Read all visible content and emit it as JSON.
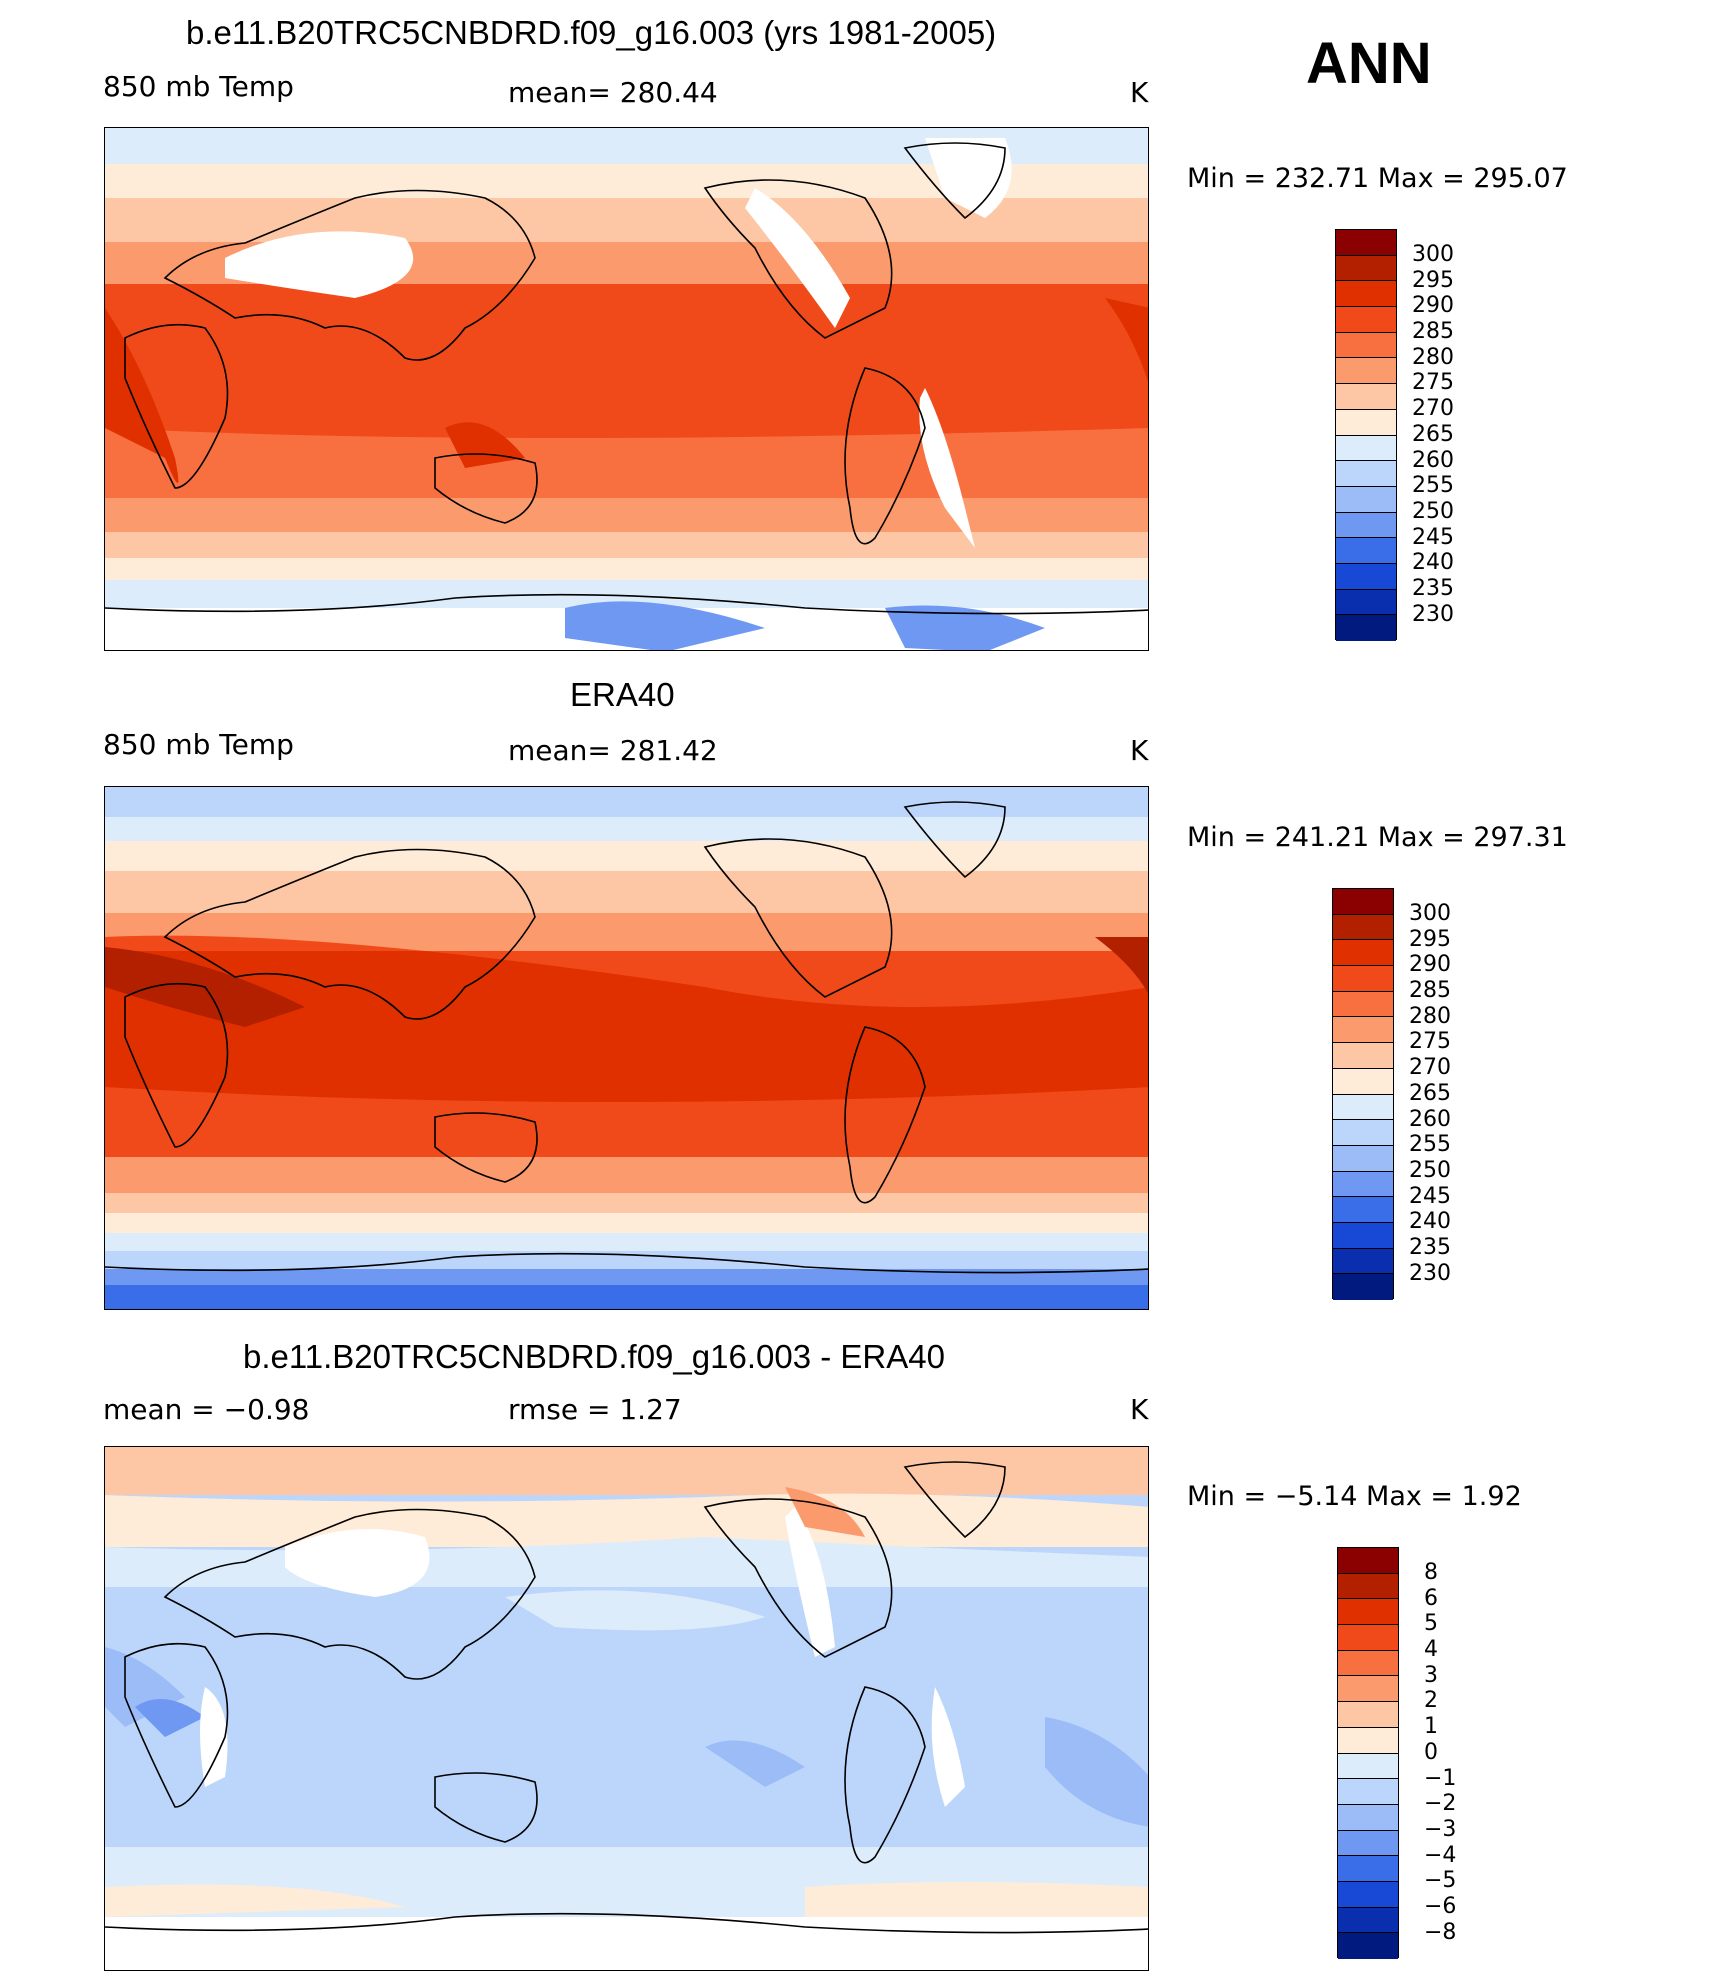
{
  "season": "ANN",
  "panels": [
    {
      "id": "model",
      "title": "b.e11.B20TRC5CNBDRD.f09_g16.003 (yrs 1981-2005)",
      "left_label": "850 mb Temp",
      "center_label": "mean=  280.44",
      "units": "K",
      "minmax": "Min  =  232.71  Max  =  295.07",
      "colorbar": {
        "colors": [
          "#8b0000",
          "#b32000",
          "#e03000",
          "#f04a1a",
          "#f87040",
          "#fb9a6c",
          "#fdc7a6",
          "#feebd8",
          "#ddecfb",
          "#bcd6fb",
          "#9bbcf7",
          "#6e98f2",
          "#3a6ee8",
          "#1848d6",
          "#0a2fae",
          "#001a80"
        ],
        "labels": [
          "300",
          "295",
          "290",
          "285",
          "280",
          "275",
          "270",
          "265",
          "260",
          "255",
          "250",
          "245",
          "240",
          "235",
          "230"
        ]
      }
    },
    {
      "id": "obs",
      "title": "ERA40",
      "left_label": "850 mb Temp",
      "center_label": "mean=  281.42",
      "units": "K",
      "minmax": "Min  =  241.21  Max  =  297.31",
      "colorbar": {
        "colors": [
          "#8b0000",
          "#b32000",
          "#e03000",
          "#f04a1a",
          "#f87040",
          "#fb9a6c",
          "#fdc7a6",
          "#feebd8",
          "#ddecfb",
          "#bcd6fb",
          "#9bbcf7",
          "#6e98f2",
          "#3a6ee8",
          "#1848d6",
          "#0a2fae",
          "#001a80"
        ],
        "labels": [
          "300",
          "295",
          "290",
          "285",
          "280",
          "275",
          "270",
          "265",
          "260",
          "255",
          "250",
          "245",
          "240",
          "235",
          "230"
        ]
      }
    },
    {
      "id": "diff",
      "title": "b.e11.B20TRC5CNBDRD.f09_g16.003 - ERA40",
      "left_label": "mean  =    −0.98",
      "center_label": "rmse  =     1.27",
      "units": "K",
      "minmax": "Min  =    −5.14  Max  =     1.92",
      "colorbar": {
        "colors": [
          "#8b0000",
          "#b32000",
          "#e03000",
          "#f04a1a",
          "#f87040",
          "#fb9a6c",
          "#fdc7a6",
          "#feebd8",
          "#ddecfb",
          "#bcd6fb",
          "#9bbcf7",
          "#6e98f2",
          "#3a6ee8",
          "#1848d6",
          "#0a2fae",
          "#001a80"
        ],
        "labels": [
          "8",
          "6",
          "5",
          "4",
          "3",
          "2",
          "1",
          "0",
          "−1",
          "−2",
          "−3",
          "−4",
          "−5",
          "−6",
          "−8"
        ]
      }
    }
  ]
}
